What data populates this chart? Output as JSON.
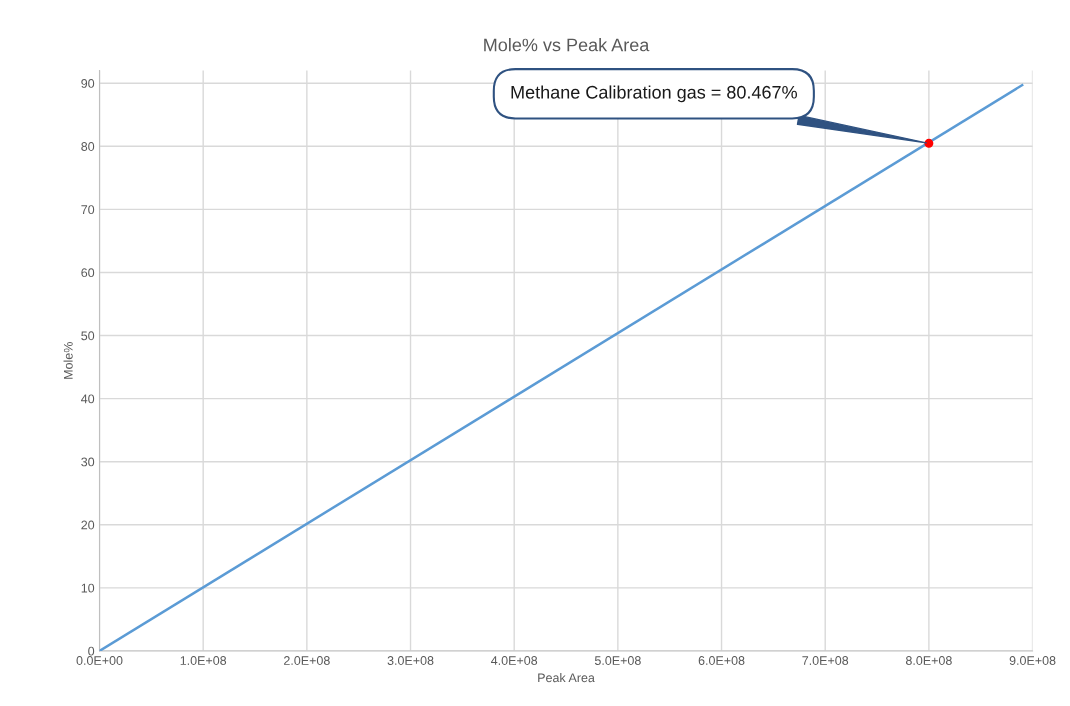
{
  "chart_data": {
    "type": "line",
    "title": "Mole% vs Peak Area",
    "xlabel": "Peak Area",
    "ylabel": "Mole%",
    "series": [
      {
        "type": "line",
        "color": "#5b9bd5",
        "x": [
          0,
          890000000
        ],
        "values": [
          0,
          89.7
        ],
        "marker": "none"
      },
      {
        "type": "scatter",
        "color": "#ff0000",
        "x": [
          800000000
        ],
        "values": [
          80.467
        ],
        "marker": "circle"
      }
    ],
    "annotations": [
      "Methane Calibration gas = 80.467%"
    ],
    "xlim": [
      0,
      900000000
    ],
    "ylim": [
      0,
      92
    ],
    "xticks": [
      {
        "value": 0,
        "label": "0.0E+00"
      },
      {
        "value": 100000000,
        "label": "1.0E+08"
      },
      {
        "value": 200000000,
        "label": "2.0E+08"
      },
      {
        "value": 300000000,
        "label": "3.0E+08"
      },
      {
        "value": 400000000,
        "label": "4.0E+08"
      },
      {
        "value": 500000000,
        "label": "5.0E+08"
      },
      {
        "value": 600000000,
        "label": "6.0E+08"
      },
      {
        "value": 700000000,
        "label": "7.0E+08"
      },
      {
        "value": 800000000,
        "label": "8.0E+08"
      },
      {
        "value": 900000000,
        "label": "9.0E+08"
      }
    ],
    "yticks": [
      0,
      10,
      20,
      30,
      40,
      50,
      60,
      70,
      80,
      90
    ],
    "grid": true,
    "legend": false
  }
}
